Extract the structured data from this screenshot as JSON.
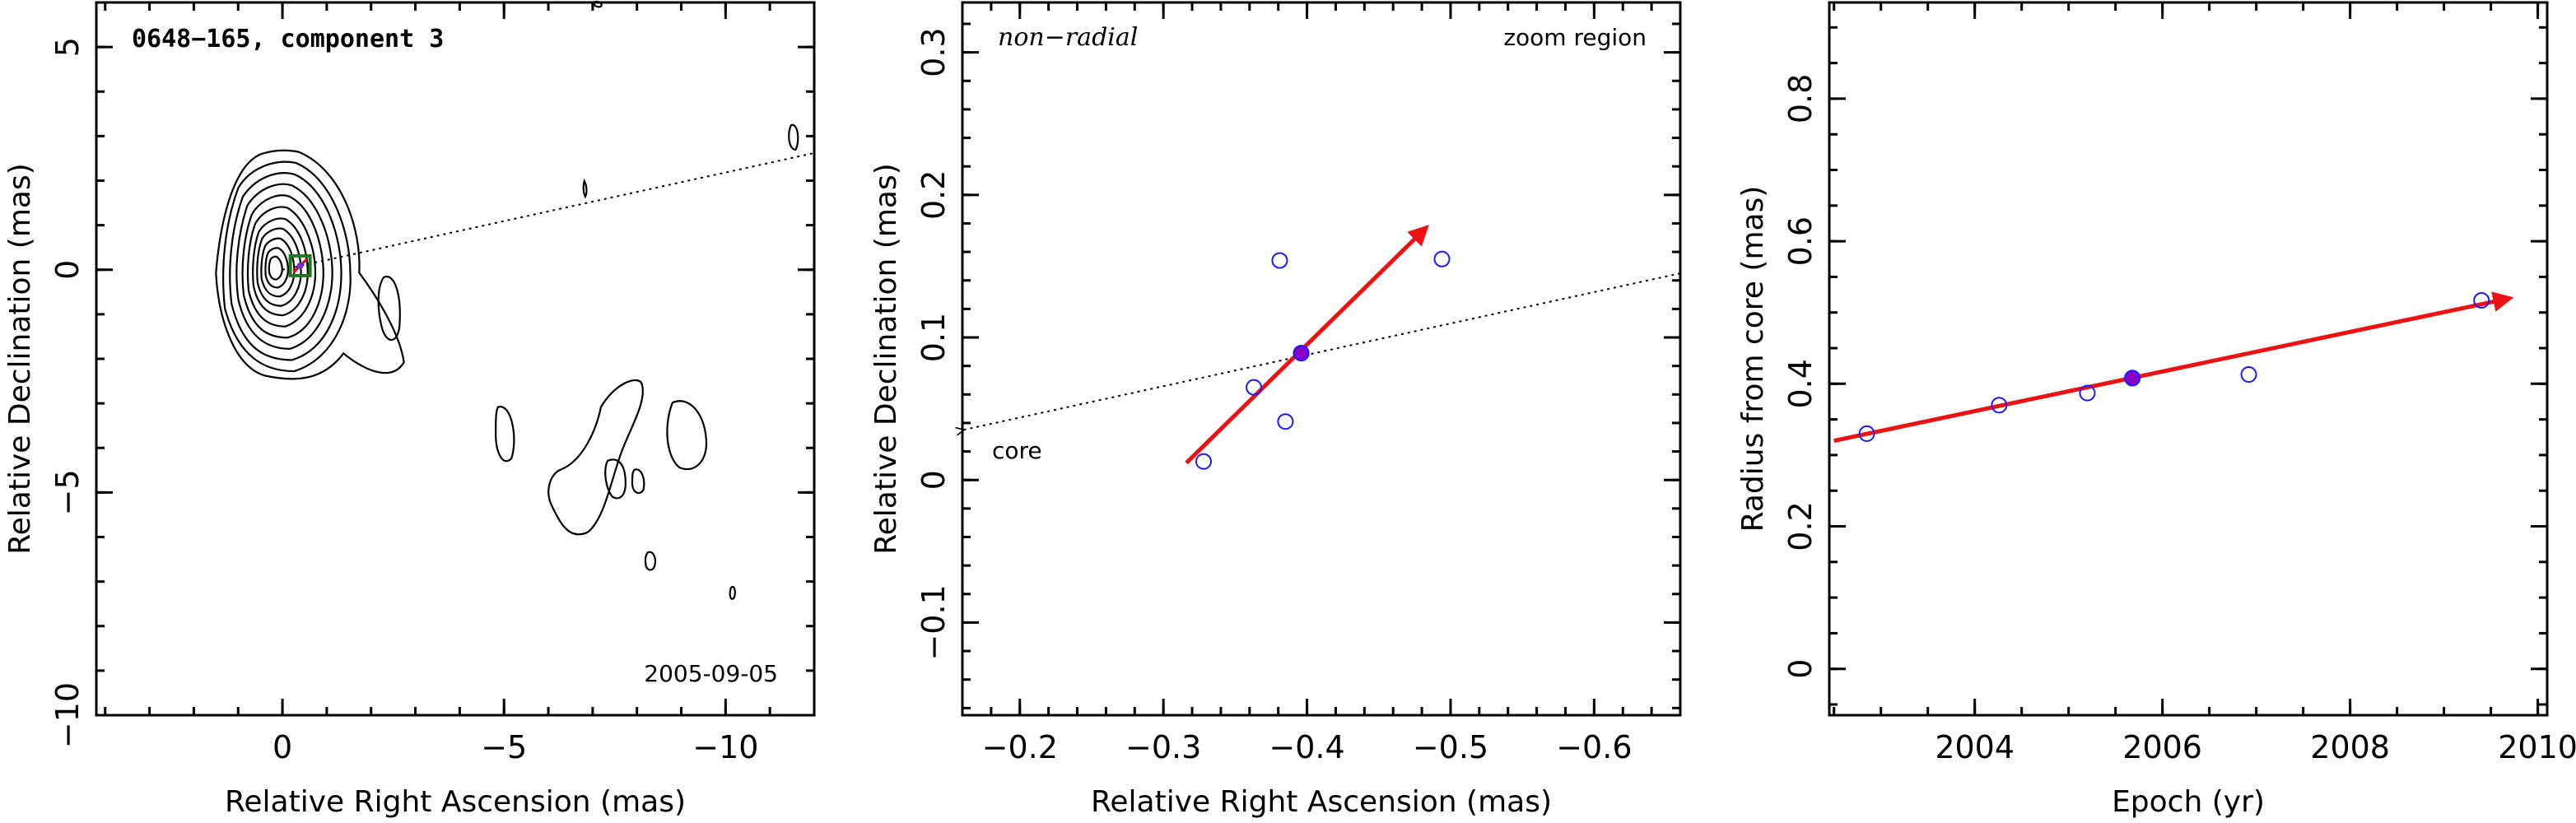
{
  "chart_data": [
    {
      "type": "contour",
      "title": "0648−165, component 3",
      "date": "2005-09-05",
      "xlabel": "Relative Right Ascension (mas)",
      "ylabel": "Relative Declination (mas)",
      "xlim": [
        4.2,
        -12
      ],
      "ylim": [
        -10,
        6
      ],
      "xticks": [
        0,
        -5,
        -10
      ],
      "xtick_labels": [
        "0",
        "−5",
        "−10"
      ],
      "yticks": [
        -10,
        -5,
        0,
        5
      ],
      "ytick_labels": [
        "−10",
        "−5",
        "0",
        "5"
      ],
      "core": {
        "x": 0,
        "y": 0
      },
      "component_box": {
        "x": -0.4,
        "y": 0.09
      },
      "radial_line": {
        "from": [
          0,
          0
        ],
        "to": [
          -12,
          2.62
        ],
        "style": "dotted"
      },
      "colors": {
        "box": "#1b7a1b",
        "marker": "#e0001b"
      }
    },
    {
      "type": "scatter",
      "title": "non−radial",
      "annotation": "zoom region",
      "core_label": "core",
      "xlabel": "Relative Right Ascension (mas)",
      "ylabel": "Relative Declination (mas)",
      "xlim": [
        -0.16,
        -0.66
      ],
      "ylim": [
        -0.165,
        0.335
      ],
      "xticks": [
        -0.2,
        -0.3,
        -0.4,
        -0.5,
        -0.6
      ],
      "xtick_labels": [
        "−0.2",
        "−0.3",
        "−0.4",
        "−0.5",
        "−0.6"
      ],
      "yticks": [
        -0.1,
        0,
        0.1,
        0.2,
        0.3
      ],
      "ytick_labels": [
        "−0.1",
        "0",
        "0.1",
        "0.2",
        "0.3"
      ],
      "points": [
        {
          "x": -0.328,
          "y": 0.013
        },
        {
          "x": -0.363,
          "y": 0.065
        },
        {
          "x": -0.381,
          "y": 0.154
        },
        {
          "x": -0.385,
          "y": 0.041
        },
        {
          "x": -0.396,
          "y": 0.089
        },
        {
          "x": -0.494,
          "y": 0.155
        }
      ],
      "highlight": {
        "x": -0.396,
        "y": 0.089
      },
      "vector": {
        "from": [
          -0.316,
          0.012
        ],
        "to": [
          -0.483,
          0.177
        ]
      },
      "radial_line": {
        "from": [
          -0.66,
          0.145
        ],
        "to": [
          -0.16,
          0.035
        ],
        "style": "dotted"
      },
      "colors": {
        "points": "#1a1aff",
        "highlight": "#8800cc",
        "vector": "#ee1111"
      }
    },
    {
      "type": "scatter",
      "xlabel": "Epoch (yr)",
      "ylabel": "Radius from core (mas)",
      "xlim": [
        2002.45,
        2010.1
      ],
      "ylim": [
        -0.065,
        0.935
      ],
      "xticks": [
        2004,
        2006,
        2008,
        2010
      ],
      "xtick_labels": [
        "2004",
        "2006",
        "2008",
        "2010"
      ],
      "yticks": [
        0,
        0.2,
        0.4,
        0.6,
        0.8
      ],
      "ytick_labels": [
        "0",
        "0.2",
        "0.4",
        "0.6",
        "0.8"
      ],
      "points": [
        {
          "x": 2002.85,
          "y": 0.33
        },
        {
          "x": 2004.26,
          "y": 0.37
        },
        {
          "x": 2005.2,
          "y": 0.387
        },
        {
          "x": 2005.68,
          "y": 0.408
        },
        {
          "x": 2006.92,
          "y": 0.413
        },
        {
          "x": 2009.4,
          "y": 0.517
        }
      ],
      "highlight": {
        "x": 2005.68,
        "y": 0.408
      },
      "vector": {
        "from": [
          2002.5,
          0.32
        ],
        "to": [
          2009.7,
          0.52
        ]
      },
      "colors": {
        "points": "#1a1aff",
        "highlight": "#8800cc",
        "vector": "#ee1111"
      }
    }
  ]
}
